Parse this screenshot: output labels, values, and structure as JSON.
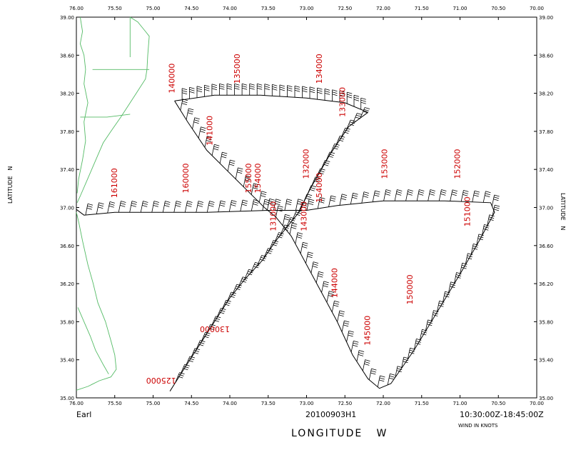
{
  "map": {
    "storm_name": "Earl",
    "flight_id": "20100903H1",
    "time_range": "10:30:00Z-18:45:00Z",
    "x_axis_label": "LONGITUDE   W",
    "y_axis_label": "LATITUDE   N",
    "right_axis_label": "LATITUDE   N",
    "wind_units": "WIND IN KNOTS",
    "lon_range": [
      76.0,
      70.0
    ],
    "lat_range": [
      35.0,
      39.0
    ],
    "lon_ticks": [
      "76.00",
      "75.50",
      "75.00",
      "74.50",
      "74.00",
      "73.50",
      "73.00",
      "72.50",
      "72.00",
      "71.50",
      "71.00",
      "70.50",
      "70.00"
    ],
    "lat_ticks": [
      "35.00",
      "35.40",
      "35.80",
      "36.20",
      "36.60",
      "37.00",
      "37.40",
      "37.80",
      "38.20",
      "38.60",
      "39.00"
    ],
    "colors": {
      "coast": "#55bb66",
      "track": "#000000",
      "time_labels": "#cc0000",
      "frame": "#000000"
    },
    "time_labels": [
      {
        "text": "140000",
        "lon": 74.72,
        "lat": 38.2,
        "rot": -90
      },
      {
        "text": "135000",
        "lon": 73.87,
        "lat": 38.3,
        "rot": -90
      },
      {
        "text": "134000",
        "lon": 72.8,
        "lat": 38.3,
        "rot": -90
      },
      {
        "text": "133000",
        "lon": 72.5,
        "lat": 37.95,
        "rot": -90
      },
      {
        "text": "141000",
        "lon": 74.23,
        "lat": 37.65,
        "rot": -90
      },
      {
        "text": "161000",
        "lon": 75.47,
        "lat": 37.1,
        "rot": -90
      },
      {
        "text": "160000",
        "lon": 74.54,
        "lat": 37.15,
        "rot": -90
      },
      {
        "text": "155000",
        "lon": 73.72,
        "lat": 37.15,
        "rot": -90
      },
      {
        "text": "154000",
        "lon": 73.6,
        "lat": 37.15,
        "rot": -90
      },
      {
        "text": "132000",
        "lon": 72.97,
        "lat": 37.3,
        "rot": -90
      },
      {
        "text": "153000",
        "lon": 71.95,
        "lat": 37.3,
        "rot": -90
      },
      {
        "text": "152000",
        "lon": 71.0,
        "lat": 37.3,
        "rot": -90
      },
      {
        "text": "154000",
        "lon": 72.8,
        "lat": 37.05,
        "rot": -90
      },
      {
        "text": "151000",
        "lon": 70.87,
        "lat": 36.8,
        "rot": -90
      },
      {
        "text": "131000",
        "lon": 73.4,
        "lat": 36.75,
        "rot": -90
      },
      {
        "text": "143000",
        "lon": 73.0,
        "lat": 36.75,
        "rot": -90
      },
      {
        "text": "144000",
        "lon": 72.6,
        "lat": 36.05,
        "rot": -90
      },
      {
        "text": "150000",
        "lon": 71.62,
        "lat": 35.98,
        "rot": -90
      },
      {
        "text": "145000",
        "lon": 72.17,
        "lat": 35.55,
        "rot": -90
      },
      {
        "text": "130000",
        "lon": 74.0,
        "lat": 35.75,
        "rot": 180
      },
      {
        "text": "125000",
        "lon": 74.7,
        "lat": 35.21,
        "rot": 180
      }
    ]
  }
}
